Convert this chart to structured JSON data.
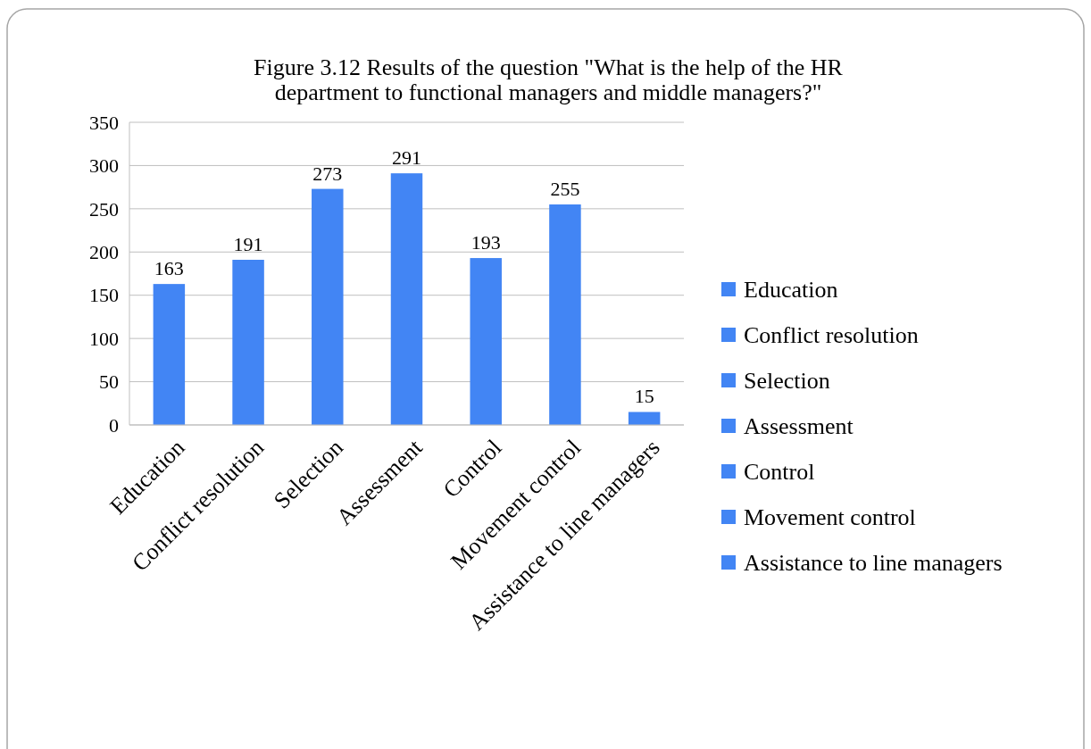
{
  "chart_data": {
    "type": "bar",
    "title": "Figure 3.12 Results of the question \"What is the help of the HR department to functional managers and middle managers?\"",
    "categories": [
      "Education",
      "Conflict resolution",
      "Selection",
      "Assessment",
      "Control",
      "Movement control",
      "Assistance to line managers"
    ],
    "stacked": true,
    "series": [
      {
        "name": "Education",
        "color": "#4285f4",
        "values": [
          163,
          null,
          null,
          null,
          null,
          null,
          null
        ]
      },
      {
        "name": "Conflict resolution",
        "color": "#4285f4",
        "values": [
          null,
          191,
          null,
          null,
          null,
          null,
          null
        ]
      },
      {
        "name": "Selection",
        "color": "#4285f4",
        "values": [
          null,
          null,
          273,
          null,
          null,
          null,
          null
        ]
      },
      {
        "name": "Assessment",
        "color": "#4285f4",
        "values": [
          null,
          null,
          null,
          291,
          null,
          null,
          null
        ]
      },
      {
        "name": "Control",
        "color": "#4285f4",
        "values": [
          null,
          null,
          null,
          null,
          193,
          null,
          null
        ]
      },
      {
        "name": "Movement control",
        "color": "#4285f4",
        "values": [
          null,
          null,
          null,
          null,
          null,
          255,
          null
        ]
      },
      {
        "name": "Assistance to line managers",
        "color": "#4285f4",
        "values": [
          null,
          null,
          null,
          null,
          null,
          null,
          15
        ]
      }
    ],
    "ylim": [
      0,
      350
    ],
    "yticks": [
      0,
      50,
      100,
      150,
      200,
      250,
      300,
      350
    ],
    "grid": "y",
    "legend": "right",
    "data_labels": true
  }
}
